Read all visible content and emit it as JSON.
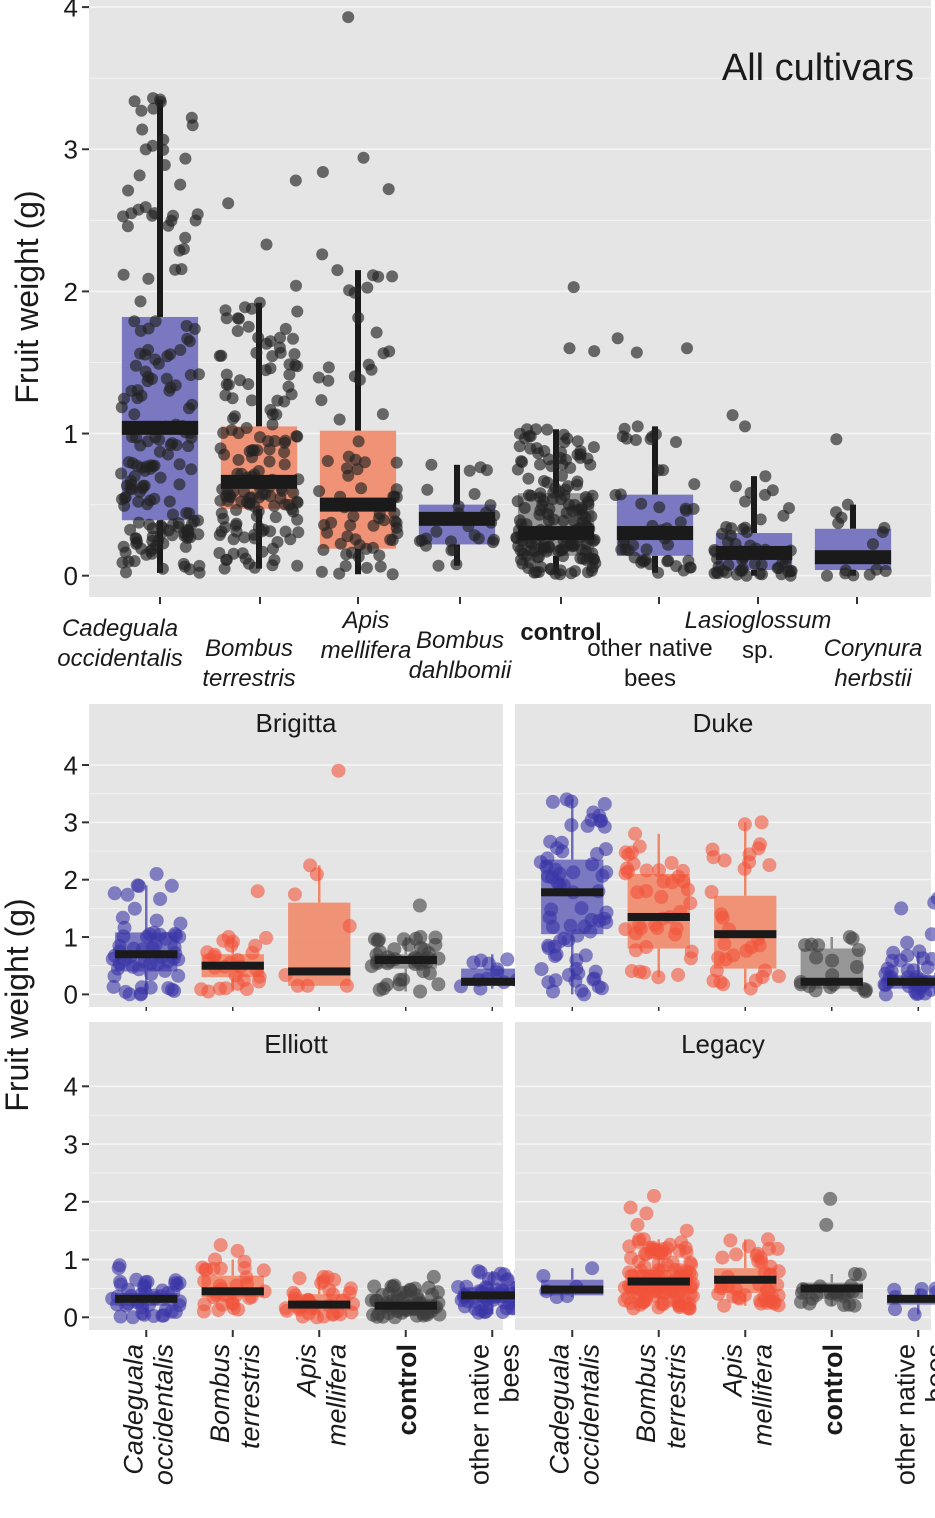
{
  "ylabel": "Fruit weight (g)",
  "colors": {
    "panel_bg": "#e5e5e5",
    "grid": "#f5f5f5",
    "point": "#222222",
    "median": "#1a1a1a",
    "blue_box": "#6d6cbd",
    "blue_point": "#3a36a6",
    "red_box": "#f08868",
    "red_point": "#f2543a",
    "grey_box": "#8d8d8d",
    "grey_point": "#3d3d3d"
  },
  "chart_data": [
    {
      "type": "box",
      "title": "All cultivars",
      "ylabel": "Fruit weight (g)",
      "ylim": [
        -0.15,
        4.05
      ],
      "yticks": [
        0,
        1,
        2,
        3,
        4
      ],
      "points": "black",
      "categories": [
        {
          "label": [
            "Cadeguala",
            "occidentalis"
          ],
          "style": "italic",
          "color": "blue",
          "q1": 0.39,
          "median": 1.04,
          "q3": 1.82,
          "lower": 0.02,
          "upper": 3.35,
          "n": 180,
          "outliers": [
            3.36
          ]
        },
        {
          "label": [
            "Bombus",
            "terrestris"
          ],
          "style": "italic",
          "color": "red",
          "q1": 0.47,
          "median": 0.66,
          "q3": 1.05,
          "lower": 0.05,
          "upper": 1.92,
          "n": 150,
          "outliers": [
            2.04,
            2.33,
            2.62,
            2.78
          ]
        },
        {
          "label": [
            "Apis",
            "mellifera"
          ],
          "style": "italic",
          "color": "red",
          "q1": 0.19,
          "median": 0.5,
          "q3": 1.02,
          "lower": 0.01,
          "upper": 2.15,
          "n": 70,
          "outliers": [
            2.26,
            2.72,
            2.84,
            2.94,
            3.93
          ]
        },
        {
          "label": [
            "Bombus",
            "dahlbomii"
          ],
          "style": "italic",
          "color": "blue",
          "q1": 0.22,
          "median": 0.4,
          "q3": 0.5,
          "lower": 0.07,
          "upper": 0.78,
          "n": 25,
          "outliers": []
        },
        {
          "label": [
            "control"
          ],
          "style": "bold",
          "color": "grey",
          "q1": 0.14,
          "median": 0.3,
          "q3": 0.58,
          "lower": 0.01,
          "upper": 1.03,
          "n": 160,
          "outliers": [
            1.58,
            1.6,
            2.03
          ]
        },
        {
          "label": [
            "other native",
            "bees"
          ],
          "style": "normal",
          "color": "blue",
          "q1": 0.14,
          "median": 0.3,
          "q3": 0.57,
          "lower": 0.02,
          "upper": 1.05,
          "n": 45,
          "outliers": [
            1.57,
            1.6,
            1.67
          ]
        },
        {
          "label": [
            "Lasioglossum",
            "sp."
          ],
          "style": "mixed",
          "color": "blue",
          "q1": 0.04,
          "median": 0.16,
          "q3": 0.3,
          "lower": 0.0,
          "upper": 0.7,
          "n": 55,
          "outliers": [
            1.05,
            1.13
          ]
        },
        {
          "label": [
            "Corynura",
            "herbstii"
          ],
          "style": "italic",
          "color": "blue",
          "q1": 0.04,
          "median": 0.13,
          "q3": 0.33,
          "lower": 0.0,
          "upper": 0.5,
          "n": 12,
          "outliers": [
            0.96
          ]
        }
      ]
    },
    {
      "type": "box",
      "title": "Brigitta",
      "ylim": [
        -0.22,
        4.75
      ],
      "yticks": [
        0,
        1,
        2,
        3,
        4
      ],
      "points": "colored",
      "categories": [
        {
          "label": [
            "Cadeguala",
            "occidentalis"
          ],
          "color": "blue",
          "q1": 0.4,
          "median": 0.7,
          "q3": 1.08,
          "lower": 0.0,
          "upper": 1.9,
          "n": 55,
          "outliers": [
            2.1
          ]
        },
        {
          "label": [
            "Bombus",
            "terrestris"
          ],
          "color": "red",
          "q1": 0.3,
          "median": 0.5,
          "q3": 0.7,
          "lower": 0.05,
          "upper": 1.0,
          "n": 25,
          "outliers": [
            1.8
          ]
        },
        {
          "label": [
            "Apis",
            "mellifera"
          ],
          "color": "red",
          "q1": 0.15,
          "median": 0.4,
          "q3": 1.6,
          "lower": 0.15,
          "upper": 2.25,
          "n": 6,
          "outliers": [
            3.9
          ]
        },
        {
          "label": [
            "control"
          ],
          "color": "grey",
          "q1": 0.45,
          "median": 0.6,
          "q3": 0.7,
          "lower": 0.05,
          "upper": 1.0,
          "n": 40,
          "outliers": [
            1.55
          ]
        },
        {
          "label": [
            "other native",
            "bees"
          ],
          "color": "blue",
          "q1": 0.15,
          "median": 0.22,
          "q3": 0.45,
          "lower": 0.1,
          "upper": 0.7,
          "n": 12,
          "outliers": []
        }
      ]
    },
    {
      "type": "box",
      "title": "Duke",
      "ylim": [
        -0.22,
        4.75
      ],
      "yticks": [
        0,
        1,
        2,
        3,
        4
      ],
      "points": "colored",
      "categories": [
        {
          "label": [
            "Cadeguala",
            "occidentalis"
          ],
          "color": "blue",
          "q1": 1.05,
          "median": 1.78,
          "q3": 2.35,
          "lower": 0.0,
          "upper": 3.4,
          "n": 70,
          "outliers": []
        },
        {
          "label": [
            "Bombus",
            "terrestris"
          ],
          "color": "red",
          "q1": 0.8,
          "median": 1.35,
          "q3": 2.1,
          "lower": 0.3,
          "upper": 2.8,
          "n": 40,
          "outliers": []
        },
        {
          "label": [
            "Apis",
            "mellifera"
          ],
          "color": "red",
          "q1": 0.45,
          "median": 1.05,
          "q3": 1.72,
          "lower": 0.1,
          "upper": 3.0,
          "n": 30,
          "outliers": []
        },
        {
          "label": [
            "control"
          ],
          "color": "grey",
          "q1": 0.1,
          "median": 0.22,
          "q3": 0.8,
          "lower": 0.05,
          "upper": 1.0,
          "n": 18,
          "outliers": []
        },
        {
          "label": [
            "other native",
            "bees"
          ],
          "color": "blue",
          "q1": 0.1,
          "median": 0.22,
          "q3": 0.33,
          "lower": 0.0,
          "upper": 0.75,
          "n": 50,
          "outliers": [
            0.9,
            1.05,
            1.25,
            1.5,
            1.6,
            1.67
          ]
        }
      ]
    },
    {
      "type": "box",
      "title": "Elliott",
      "ylim": [
        -0.22,
        4.75
      ],
      "yticks": [
        0,
        1,
        2,
        3,
        4
      ],
      "points": "colored",
      "categories": [
        {
          "label": [
            "Cadeguala",
            "occidentalis"
          ],
          "color": "blue",
          "q1": 0.2,
          "median": 0.32,
          "q3": 0.42,
          "lower": 0.0,
          "upper": 0.65,
          "n": 40,
          "outliers": [
            0.85,
            0.9
          ]
        },
        {
          "label": [
            "Bombus",
            "terrestris"
          ],
          "color": "red",
          "q1": 0.35,
          "median": 0.45,
          "q3": 0.72,
          "lower": 0.1,
          "upper": 1.0,
          "n": 30,
          "outliers": [
            1.15,
            1.25
          ]
        },
        {
          "label": [
            "Apis",
            "mellifera"
          ],
          "color": "red",
          "q1": 0.12,
          "median": 0.22,
          "q3": 0.4,
          "lower": 0.0,
          "upper": 0.7,
          "n": 35,
          "outliers": []
        },
        {
          "label": [
            "control"
          ],
          "color": "grey",
          "q1": 0.1,
          "median": 0.2,
          "q3": 0.32,
          "lower": 0.0,
          "upper": 0.55,
          "n": 60,
          "outliers": [
            0.7
          ]
        },
        {
          "label": [
            "other native",
            "bees"
          ],
          "color": "blue",
          "q1": 0.25,
          "median": 0.38,
          "q3": 0.52,
          "lower": 0.05,
          "upper": 0.8,
          "n": 50,
          "outliers": []
        }
      ]
    },
    {
      "type": "box",
      "title": "Legacy",
      "ylim": [
        -0.22,
        4.75
      ],
      "yticks": [
        0,
        1,
        2,
        3,
        4
      ],
      "points": "colored",
      "categories": [
        {
          "label": [
            "Cadeguala",
            "occidentalis"
          ],
          "color": "blue",
          "q1": 0.38,
          "median": 0.48,
          "q3": 0.65,
          "lower": 0.35,
          "upper": 0.85,
          "n": 4,
          "outliers": []
        },
        {
          "label": [
            "Bombus",
            "terrestris"
          ],
          "color": "red",
          "q1": 0.45,
          "median": 0.62,
          "q3": 0.82,
          "lower": 0.15,
          "upper": 1.35,
          "n": 120,
          "outliers": [
            1.5,
            1.6,
            1.8,
            1.9,
            2.1
          ]
        },
        {
          "label": [
            "Apis",
            "mellifera"
          ],
          "color": "red",
          "q1": 0.42,
          "median": 0.65,
          "q3": 0.85,
          "lower": 0.2,
          "upper": 1.35,
          "n": 40,
          "outliers": []
        },
        {
          "label": [
            "control"
          ],
          "color": "grey",
          "q1": 0.32,
          "median": 0.5,
          "q3": 0.6,
          "lower": 0.2,
          "upper": 0.75,
          "n": 20,
          "outliers": [
            1.6,
            2.05
          ]
        },
        {
          "label": [
            "other native",
            "bees"
          ],
          "color": "blue",
          "q1": 0.22,
          "median": 0.32,
          "q3": 0.38,
          "lower": 0.05,
          "upper": 0.5,
          "n": 6,
          "outliers": []
        }
      ]
    }
  ]
}
